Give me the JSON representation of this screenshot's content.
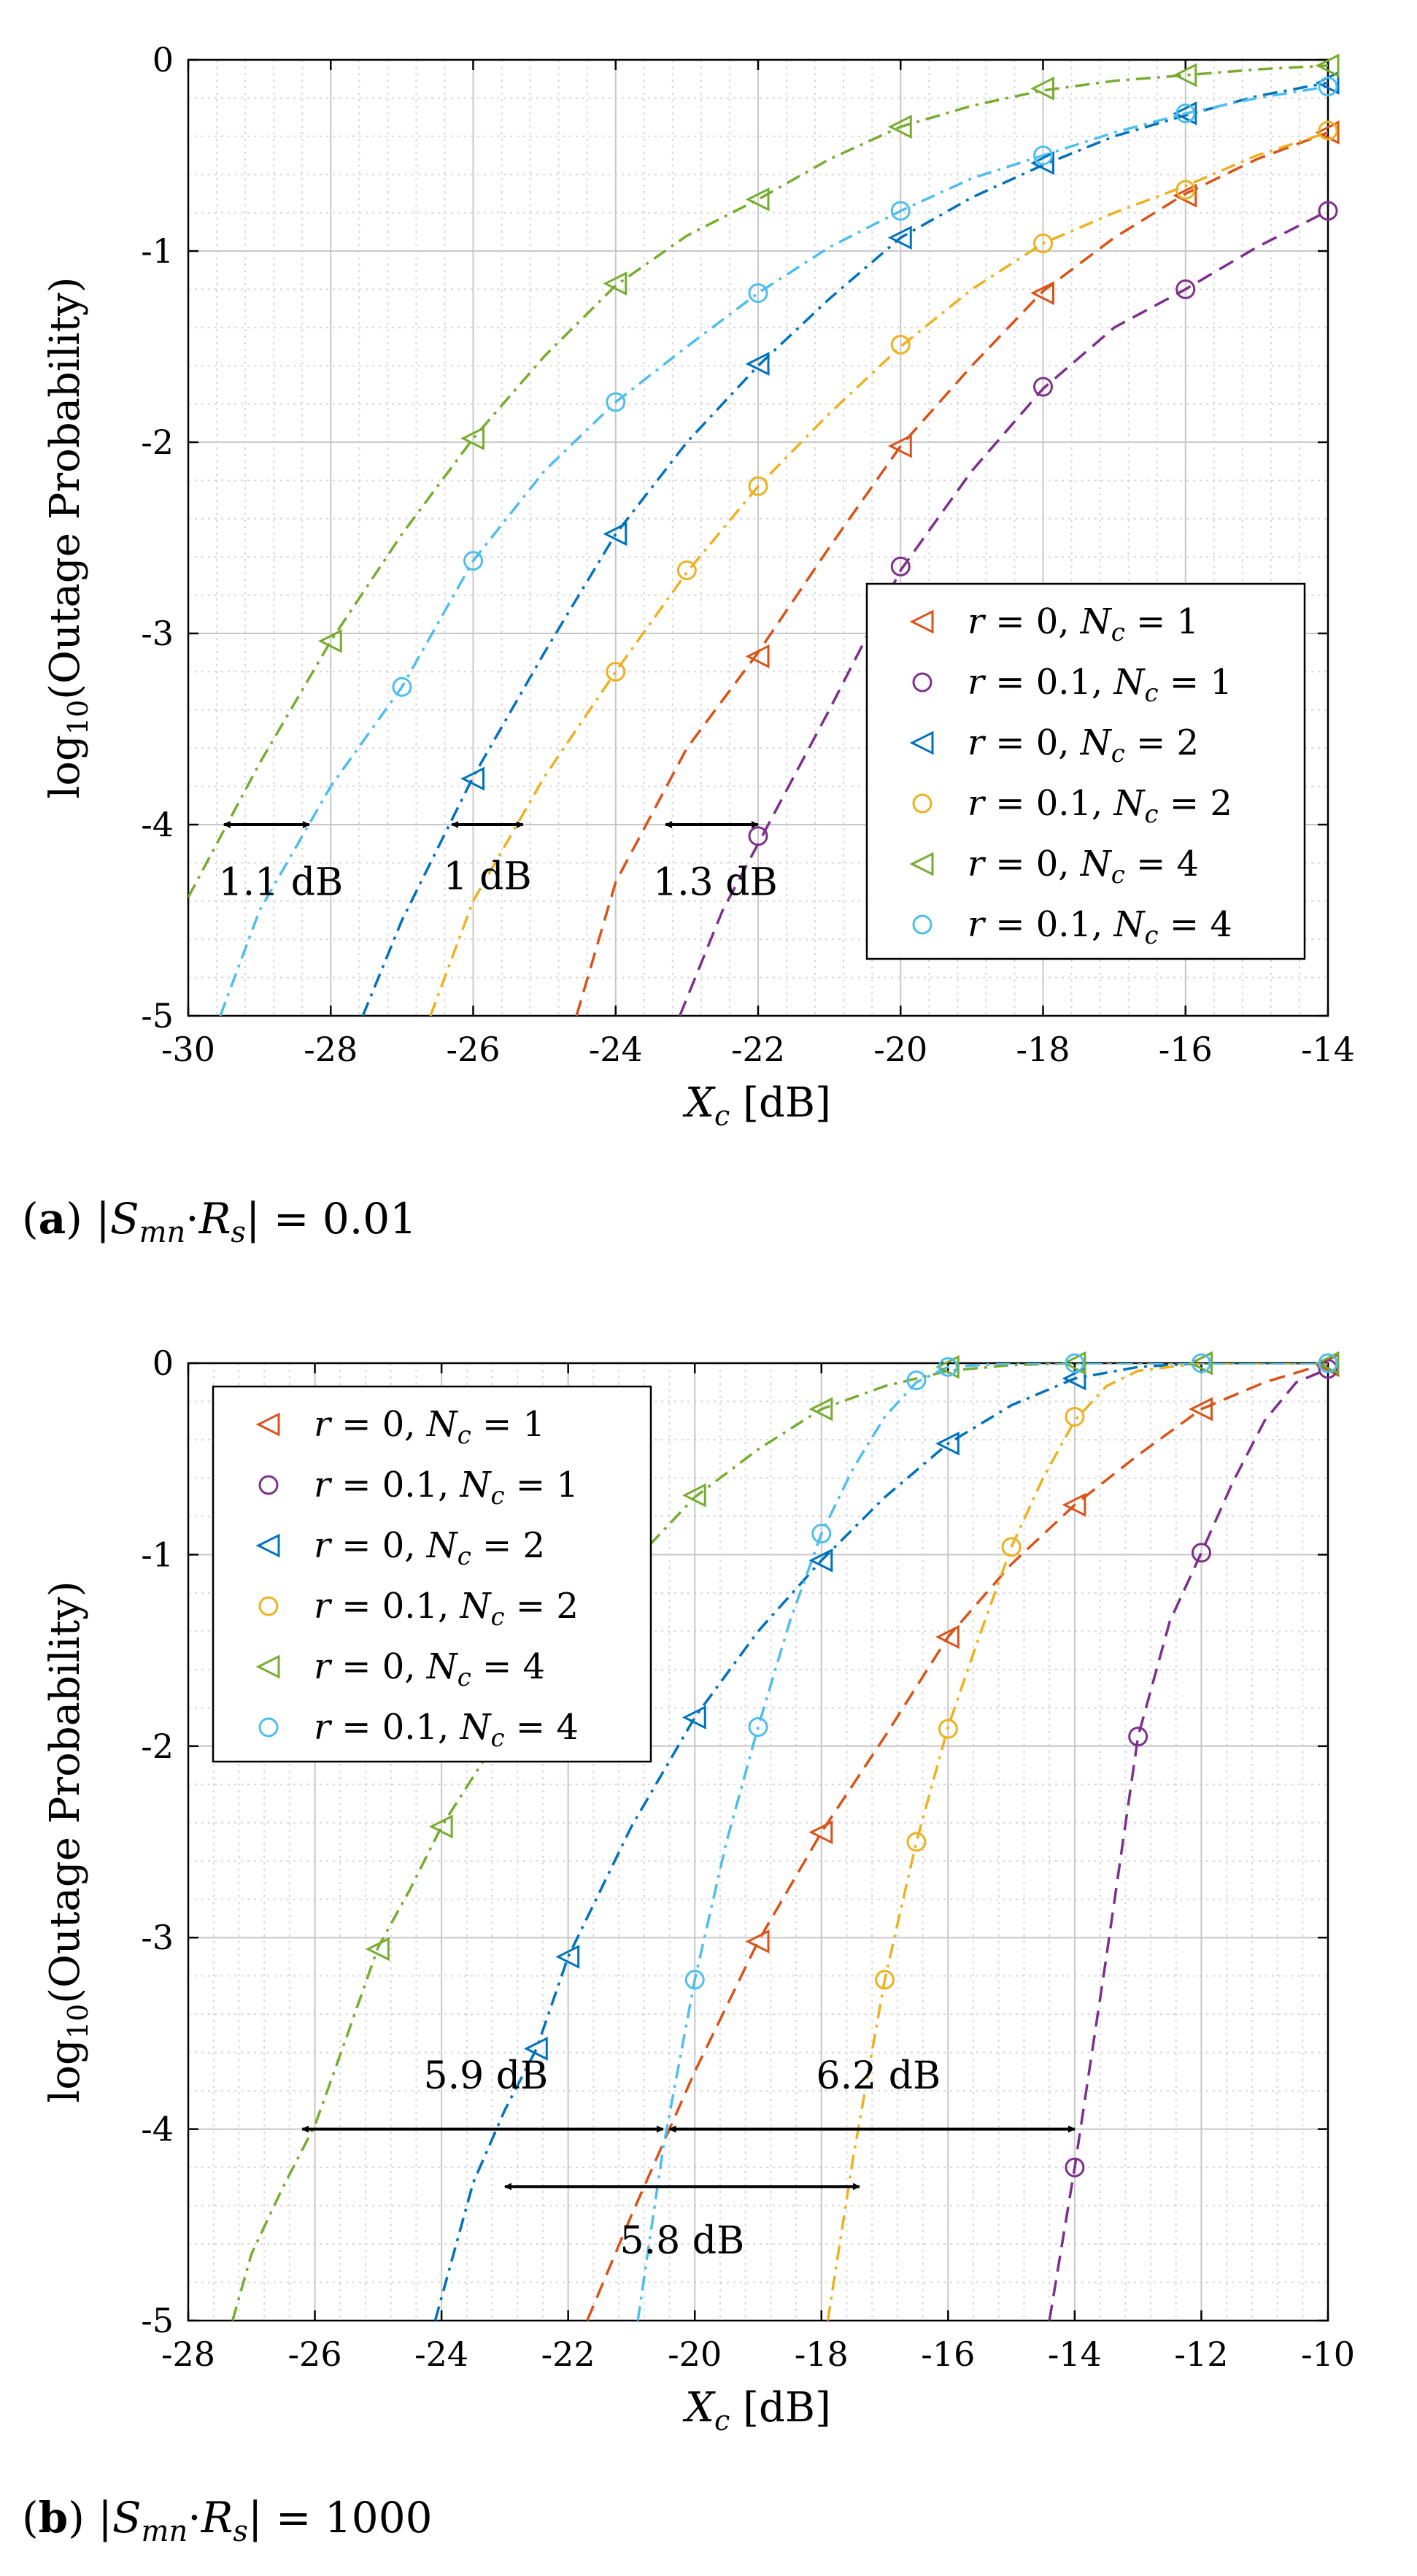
{
  "chart_data": [
    {
      "id": "a",
      "type": "line",
      "caption": {
        "tag": "a",
        "text": "|S_mn·R_s| = 0.01"
      },
      "xlabel": "X_c [dB]",
      "ylabel": "log10(Outage Probability)",
      "xlim": [
        -30,
        -14
      ],
      "ylim": [
        -5,
        0
      ],
      "xticks": [
        -30,
        -28,
        -26,
        -24,
        -22,
        -20,
        -18,
        -16,
        -14
      ],
      "yticks": [
        0,
        -1,
        -2,
        -3,
        -4,
        -5
      ],
      "xtick_labels": [
        "-30",
        "-28",
        "-26",
        "-24",
        "-22",
        "-20",
        "-18",
        "-16",
        "-14"
      ],
      "ytick_labels": [
        "0",
        "-1",
        "-2",
        "-3",
        "-4",
        "-5"
      ],
      "grid": true,
      "legend_position": "lower-right",
      "series": [
        {
          "name": "r = 0, N_c = 1",
          "r": "0",
          "n": "1",
          "color": "#D95319",
          "marker": "triangle-left",
          "dash": "dashed",
          "x": [
            -24.55,
            -24,
            -23,
            -22,
            -21,
            -20,
            -19,
            -18,
            -17,
            -16,
            -15,
            -14
          ],
          "y": [
            -5,
            -4.3,
            -3.6,
            -3.1,
            -2.55,
            -2.02,
            -1.6,
            -1.21,
            -0.93,
            -0.7,
            -0.52,
            -0.38
          ],
          "marker_x": [
            -22,
            -20,
            -18,
            -16,
            -14
          ],
          "marker_y": [
            -3.12,
            -2.02,
            -1.22,
            -0.71,
            -0.38
          ]
        },
        {
          "name": "r = 0.1, N_c = 1",
          "r": "0.1",
          "n": "1",
          "color": "#7E2F8E",
          "marker": "circle",
          "dash": "dashed",
          "x": [
            -23.1,
            -22.5,
            -22,
            -21,
            -20,
            -19,
            -18,
            -17,
            -16,
            -15,
            -14
          ],
          "y": [
            -5,
            -4.45,
            -4.1,
            -3.4,
            -2.67,
            -2.15,
            -1.72,
            -1.4,
            -1.2,
            -0.98,
            -0.79
          ],
          "marker_x": [
            -22,
            -20,
            -18,
            -16,
            -14
          ],
          "marker_y": [
            -4.06,
            -2.65,
            -1.71,
            -1.2,
            -0.79
          ]
        },
        {
          "name": "r = 0, N_c = 2",
          "r": "0",
          "n": "2",
          "color": "#0072BD",
          "marker": "triangle-left",
          "dash": "dashdot",
          "x": [
            -27.55,
            -27,
            -26,
            -25,
            -24,
            -23,
            -22,
            -21,
            -20,
            -19,
            -18,
            -17,
            -16,
            -15,
            -14
          ],
          "y": [
            -5,
            -4.5,
            -3.75,
            -3.1,
            -2.48,
            -2.0,
            -1.6,
            -1.25,
            -0.93,
            -0.72,
            -0.55,
            -0.4,
            -0.29,
            -0.19,
            -0.12
          ],
          "marker_x": [
            -26,
            -24,
            -22,
            -20,
            -18,
            -16,
            -14
          ],
          "marker_y": [
            -3.76,
            -2.48,
            -1.59,
            -0.93,
            -0.54,
            -0.28,
            -0.12
          ]
        },
        {
          "name": "r = 0.1, N_c = 2",
          "r": "0.1",
          "n": "2",
          "color": "#EDB120",
          "marker": "circle",
          "dash": "dashdot",
          "x": [
            -26.6,
            -26,
            -25,
            -24,
            -23,
            -22,
            -21,
            -20,
            -19,
            -18,
            -17,
            -16,
            -15,
            -14
          ],
          "y": [
            -5,
            -4.4,
            -3.75,
            -3.2,
            -2.68,
            -2.23,
            -1.85,
            -1.5,
            -1.2,
            -0.96,
            -0.8,
            -0.66,
            -0.5,
            -0.38
          ],
          "marker_x": [
            -24,
            -23,
            -22,
            -20,
            -18,
            -16,
            -14
          ],
          "marker_y": [
            -3.2,
            -2.67,
            -2.23,
            -1.49,
            -0.96,
            -0.68,
            -0.37
          ]
        },
        {
          "name": "r = 0, N_c = 4",
          "r": "0",
          "n": "4",
          "color": "#77AC30",
          "marker": "triangle-left",
          "dash": "dashdot",
          "x": [
            -30,
            -29,
            -28,
            -27,
            -26,
            -25,
            -24,
            -23,
            -22,
            -21,
            -20,
            -19,
            -18,
            -17,
            -16,
            -15,
            -14
          ],
          "y": [
            -4.38,
            -3.68,
            -3.04,
            -2.48,
            -1.98,
            -1.55,
            -1.18,
            -0.92,
            -0.73,
            -0.52,
            -0.35,
            -0.24,
            -0.16,
            -0.11,
            -0.08,
            -0.05,
            -0.03
          ],
          "marker_x": [
            -28,
            -26,
            -24,
            -22,
            -20,
            -18,
            -16,
            -14
          ],
          "marker_y": [
            -3.04,
            -1.98,
            -1.17,
            -0.73,
            -0.35,
            -0.15,
            -0.08,
            -0.03
          ]
        },
        {
          "name": "r = 0.1, N_c = 4",
          "r": "0.1",
          "n": "4",
          "color": "#4DBEEE",
          "marker": "circle",
          "dash": "dashdot",
          "x": [
            -29.55,
            -29,
            -28,
            -27,
            -26,
            -25,
            -24,
            -23,
            -22,
            -21,
            -20,
            -19,
            -18,
            -17,
            -16,
            -15,
            -14
          ],
          "y": [
            -5,
            -4.45,
            -3.8,
            -3.28,
            -2.62,
            -2.15,
            -1.79,
            -1.5,
            -1.22,
            -0.98,
            -0.79,
            -0.62,
            -0.5,
            -0.38,
            -0.28,
            -0.2,
            -0.14
          ],
          "marker_x": [
            -27,
            -26,
            -24,
            -22,
            -20,
            -18,
            -16,
            -14
          ],
          "marker_y": [
            -3.28,
            -2.62,
            -1.79,
            -1.22,
            -0.79,
            -0.5,
            -0.28,
            -0.14
          ]
        }
      ],
      "annotations": [
        {
          "text": "1.1 dB",
          "x1": -29.5,
          "x2": -28.3,
          "y": -4,
          "text_x": -28.7,
          "text_y": -4.3
        },
        {
          "text": "1 dB",
          "x1": -26.3,
          "x2": -25.3,
          "y": -4,
          "text_x": -25.8,
          "text_y": -4.27
        },
        {
          "text": "1.3 dB",
          "x1": -23.3,
          "x2": -22,
          "y": -4,
          "text_x": -22.6,
          "text_y": -4.3
        }
      ]
    },
    {
      "id": "b",
      "type": "line",
      "caption": {
        "tag": "b",
        "text": "|S_mn·R_s| = 1000"
      },
      "xlabel": "X_c [dB]",
      "ylabel": "log10(Outage Probability)",
      "xlim": [
        -28,
        -10
      ],
      "ylim": [
        -5,
        0
      ],
      "xticks": [
        -28,
        -26,
        -24,
        -22,
        -20,
        -18,
        -16,
        -14,
        -12,
        -10
      ],
      "yticks": [
        0,
        -1,
        -2,
        -3,
        -4,
        -5
      ],
      "xtick_labels": [
        "-28",
        "-26",
        "-24",
        "-22",
        "-20",
        "-18",
        "-16",
        "-14",
        "-12",
        "-10"
      ],
      "ytick_labels": [
        "0",
        "-1",
        "-2",
        "-3",
        "-4",
        "-5"
      ],
      "grid": true,
      "legend_position": "upper-left",
      "series": [
        {
          "name": "r = 0, N_c = 1",
          "r": "0",
          "n": "1",
          "color": "#D95319",
          "marker": "triangle-left",
          "dash": "dashed",
          "x": [
            -21.7,
            -21,
            -20,
            -19,
            -18,
            -17,
            -16,
            -15,
            -14,
            -13,
            -12,
            -11,
            -10
          ],
          "y": [
            -5,
            -4.45,
            -3.7,
            -3.02,
            -2.45,
            -1.95,
            -1.43,
            -1.05,
            -0.74,
            -0.48,
            -0.24,
            -0.1,
            0
          ],
          "marker_x": [
            -19,
            -18,
            -16,
            -14,
            -12,
            -10
          ],
          "marker_y": [
            -3.02,
            -2.45,
            -1.43,
            -0.74,
            -0.24,
            -0.01
          ]
        },
        {
          "name": "r = 0.1, N_c = 1",
          "r": "0.1",
          "n": "1",
          "color": "#7E2F8E",
          "marker": "circle",
          "dash": "dashed",
          "x": [
            -14.4,
            -14,
            -13.5,
            -13,
            -12.5,
            -12,
            -11.5,
            -11,
            -10.5,
            -10
          ],
          "y": [
            -5,
            -4.2,
            -3.1,
            -1.95,
            -1.35,
            -0.99,
            -0.62,
            -0.3,
            -0.1,
            -0.03
          ],
          "marker_x": [
            -14,
            -13,
            -12,
            -10
          ],
          "marker_y": [
            -4.2,
            -1.95,
            -0.99,
            -0.03
          ]
        },
        {
          "name": "r = 0, N_c = 2",
          "r": "0",
          "n": "2",
          "color": "#0072BD",
          "marker": "triangle-left",
          "dash": "dashdot",
          "x": [
            -24.1,
            -23.5,
            -23,
            -22.5,
            -22,
            -21,
            -20,
            -19,
            -18,
            -17,
            -16,
            -15,
            -14,
            -13,
            -12,
            -11,
            -10
          ],
          "y": [
            -5,
            -4.28,
            -3.9,
            -3.58,
            -3.1,
            -2.42,
            -1.85,
            -1.4,
            -1.03,
            -0.7,
            -0.42,
            -0.22,
            -0.08,
            -0.02,
            0,
            0,
            0
          ],
          "marker_x": [
            -22.5,
            -22,
            -20,
            -18,
            -16,
            -14,
            -12,
            -10
          ],
          "marker_y": [
            -3.58,
            -3.1,
            -1.85,
            -1.03,
            -0.42,
            -0.08,
            0,
            0
          ]
        },
        {
          "name": "r = 0.1, N_c = 2",
          "r": "0.1",
          "n": "2",
          "color": "#EDB120",
          "marker": "circle",
          "dash": "dashdot",
          "x": [
            -17.9,
            -17.5,
            -17,
            -16.5,
            -16,
            -15.5,
            -15,
            -14.5,
            -14,
            -13.5,
            -13,
            -12,
            -11,
            -10
          ],
          "y": [
            -5,
            -4.15,
            -3.22,
            -2.5,
            -1.9,
            -1.42,
            -0.96,
            -0.6,
            -0.3,
            -0.12,
            -0.04,
            0,
            0,
            0
          ],
          "marker_x": [
            -17,
            -16.5,
            -16,
            -15,
            -14,
            -12,
            -10
          ],
          "marker_y": [
            -3.22,
            -2.5,
            -1.91,
            -0.96,
            -0.28,
            0,
            0
          ]
        },
        {
          "name": "r = 0, N_c = 4",
          "r": "0",
          "n": "4",
          "color": "#77AC30",
          "marker": "triangle-left",
          "dash": "dashdot",
          "x": [
            -27.3,
            -27,
            -26.5,
            -26,
            -25.5,
            -25,
            -24.5,
            -24,
            -23,
            -22,
            -21,
            -20,
            -19,
            -18,
            -17,
            -16,
            -15,
            -14,
            -13,
            -12,
            -11,
            -10
          ],
          "y": [
            -5,
            -4.65,
            -4.3,
            -3.98,
            -3.52,
            -3.05,
            -2.75,
            -2.42,
            -1.9,
            -1.45,
            -1.05,
            -0.7,
            -0.45,
            -0.24,
            -0.12,
            -0.04,
            -0.01,
            0,
            0,
            0,
            0,
            0
          ],
          "marker_x": [
            -25,
            -24,
            -20,
            -18,
            -16,
            -14,
            -12,
            -10
          ],
          "marker_y": [
            -3.06,
            -2.42,
            -0.69,
            -0.24,
            -0.02,
            0,
            0,
            0
          ]
        },
        {
          "name": "r = 0.1, N_c = 4",
          "r": "0.1",
          "n": "4",
          "color": "#4DBEEE",
          "marker": "circle",
          "dash": "dashdot",
          "x": [
            -20.9,
            -20.5,
            -20,
            -19.5,
            -19,
            -18.5,
            -18,
            -17.5,
            -17,
            -16.5,
            -16,
            -15,
            -14,
            -13,
            -12,
            -11,
            -10
          ],
          "y": [
            -5,
            -4.1,
            -3.22,
            -2.5,
            -1.9,
            -1.35,
            -0.89,
            -0.55,
            -0.28,
            -0.1,
            -0.02,
            0,
            0,
            0,
            0,
            0,
            0
          ],
          "marker_x": [
            -20,
            -19,
            -18,
            -16.5,
            -16,
            -14,
            -12,
            -10
          ],
          "marker_y": [
            -3.22,
            -1.9,
            -0.89,
            -0.09,
            -0.02,
            0,
            0,
            0
          ]
        }
      ],
      "annotations": [
        {
          "text": "5.9 dB",
          "x1": -26.2,
          "x2": -20.5,
          "y": -4,
          "text_x": -23.3,
          "text_y": -3.72
        },
        {
          "text": "6.2 dB",
          "x1": -20.4,
          "x2": -14.0,
          "y": -4,
          "text_x": -17.1,
          "text_y": -3.72
        },
        {
          "text": "5.8 dB",
          "x1": -23.0,
          "x2": -17.4,
          "y": -4.3,
          "text_x": -20.2,
          "text_y": -4.58
        }
      ]
    }
  ]
}
